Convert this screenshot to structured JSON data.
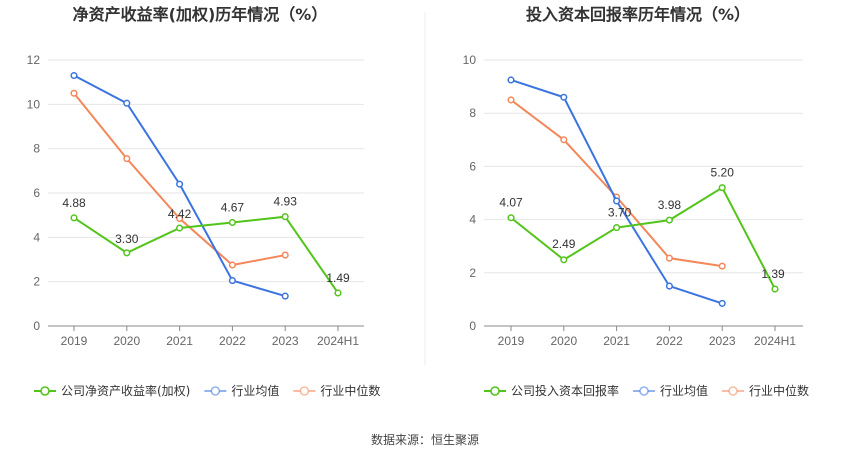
{
  "footer": "数据来源：恒生聚源",
  "chart_data": [
    {
      "type": "line",
      "title": "净资产收益率(加权)历年情况（%）",
      "categories": [
        "2019",
        "2020",
        "2021",
        "2022",
        "2023",
        "2024H1"
      ],
      "ylim": [
        0,
        12
      ],
      "yticks": [
        0,
        2,
        4,
        6,
        8,
        10,
        12
      ],
      "grid": true,
      "legend_position": "bottom-left",
      "series": [
        {
          "name": "公司净资产收益率(加权)",
          "color": "#52c41a",
          "values": [
            4.88,
            3.3,
            4.42,
            4.67,
            4.93,
            1.49
          ],
          "labels": [
            "4.88",
            "3.30",
            "4.42",
            "4.67",
            "4.93",
            "1.49"
          ]
        },
        {
          "name": "行业均值",
          "color": "#3b74e0",
          "values": [
            11.3,
            10.05,
            6.4,
            2.05,
            1.35,
            null
          ]
        },
        {
          "name": "行业中位数",
          "color": "#f3875a",
          "values": [
            10.5,
            7.55,
            4.85,
            2.75,
            3.2,
            null
          ]
        }
      ]
    },
    {
      "type": "line",
      "title": "投入资本回报率历年情况（%）",
      "categories": [
        "2019",
        "2020",
        "2021",
        "2022",
        "2023",
        "2024H1"
      ],
      "ylim": [
        0,
        10
      ],
      "yticks": [
        0,
        2,
        4,
        6,
        8,
        10
      ],
      "grid": true,
      "legend_position": "bottom-left",
      "series": [
        {
          "name": "公司投入资本回报率",
          "color": "#52c41a",
          "values": [
            4.07,
            2.49,
            3.7,
            3.98,
            5.2,
            1.39
          ],
          "labels": [
            "4.07",
            "2.49",
            "3.70",
            "3.98",
            "5.20",
            "1.39"
          ]
        },
        {
          "name": "行业均值",
          "color": "#3b74e0",
          "values": [
            9.25,
            8.6,
            4.7,
            1.5,
            0.85,
            null
          ]
        },
        {
          "name": "行业中位数",
          "color": "#f3875a",
          "values": [
            8.5,
            7.0,
            4.85,
            2.55,
            2.25,
            null
          ]
        }
      ]
    }
  ]
}
